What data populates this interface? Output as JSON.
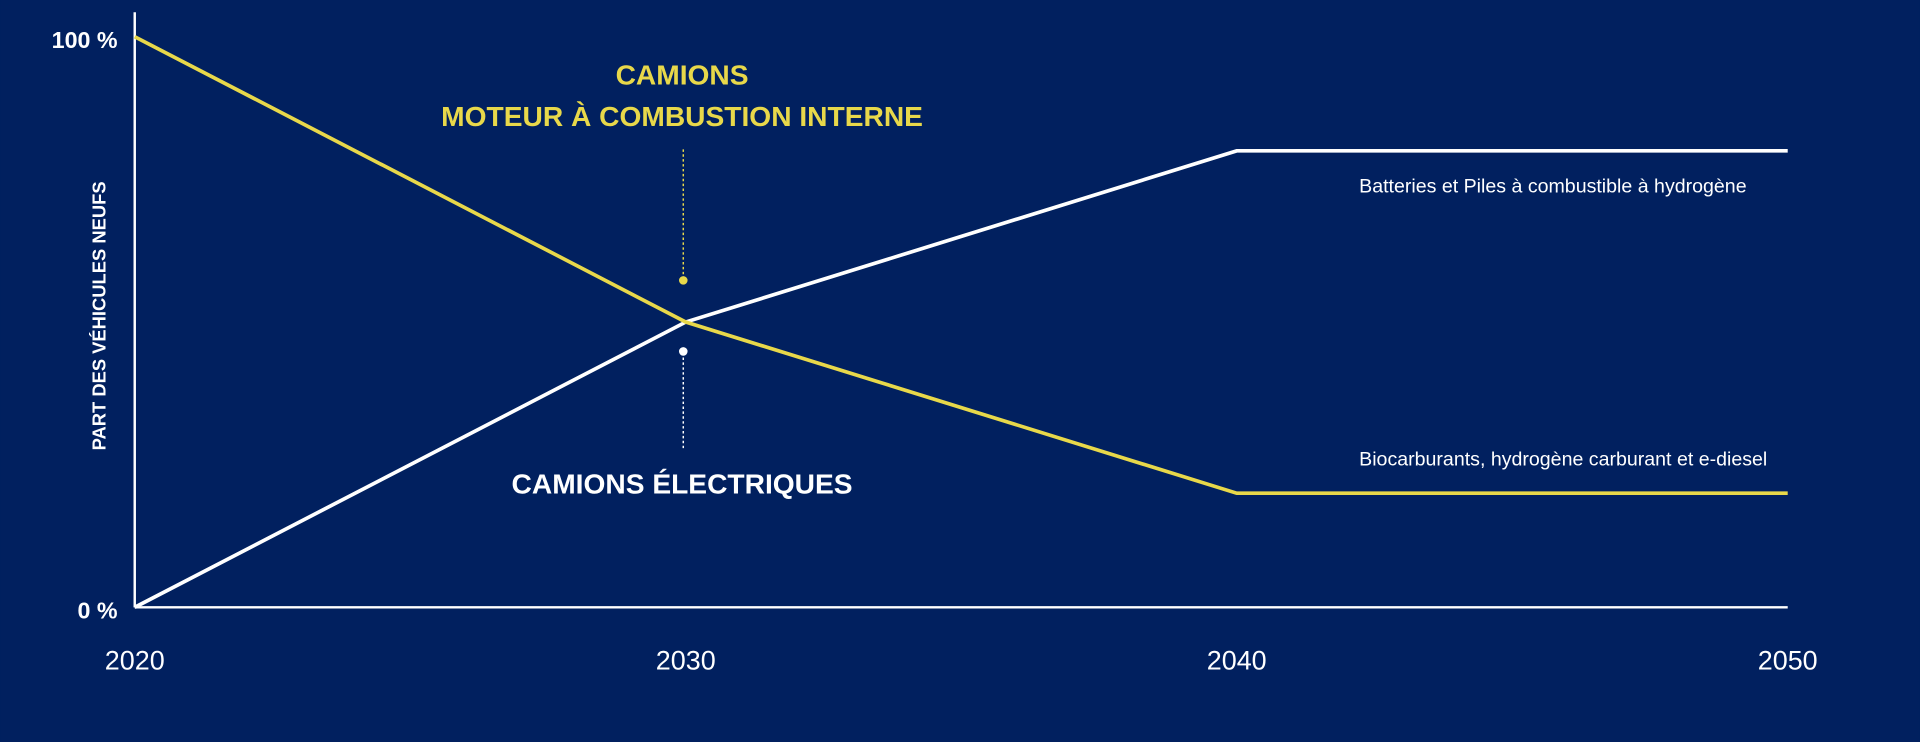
{
  "chart_data": {
    "type": "line",
    "y_label": "PART DES VÉHICULES NEUFS",
    "x": [
      2020,
      2030,
      2040,
      2050
    ],
    "xlim": [
      2020,
      2050
    ],
    "xticks": [
      2020,
      2030,
      2040,
      2050
    ],
    "ylim": [
      0,
      100
    ],
    "yticks": [
      {
        "value": 0,
        "label": "0 %"
      },
      {
        "value": 100,
        "label": "100 %"
      }
    ],
    "grid": false,
    "series": [
      {
        "name": "Batteries et  Piles à combustible à hydrogène",
        "color": "#ffffff",
        "values": [
          0,
          50,
          80,
          80
        ]
      },
      {
        "name": "Biocarburants, hydrogène carburant et e-diesel",
        "color": "#e8d84a",
        "values": [
          100,
          50,
          20,
          20
        ]
      }
    ],
    "annotations": [
      "CAMIONS",
      "MOTEUR À COMBUSTION INTERNE",
      "CAMIONS ÉLECTRIQUES"
    ]
  }
}
